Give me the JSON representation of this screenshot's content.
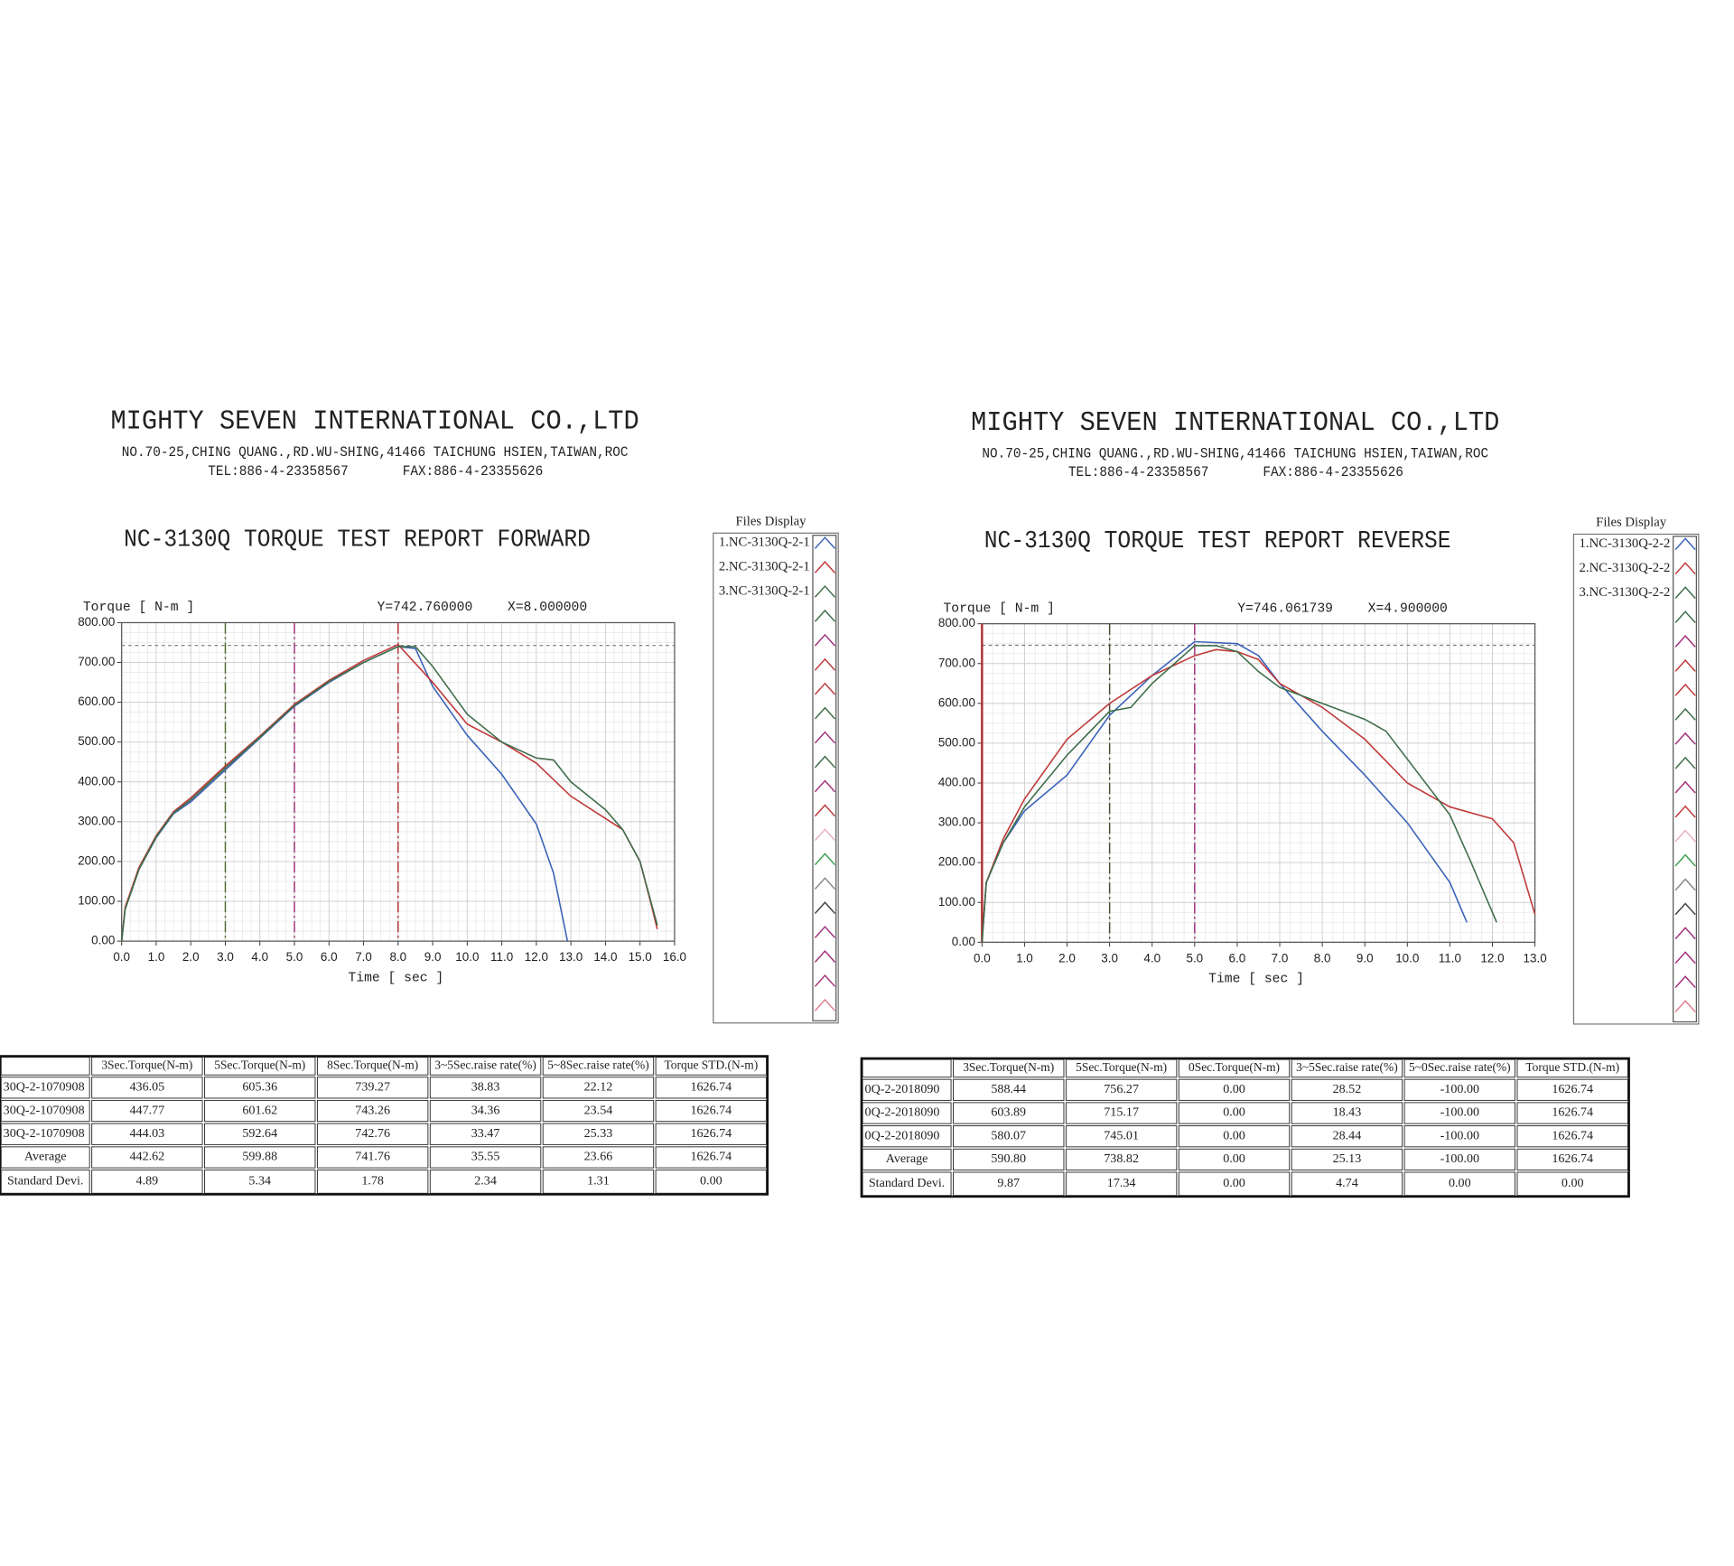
{
  "reports": [
    {
      "company": "MIGHTY SEVEN INTERNATIONAL CO.,LTD",
      "address": "NO.70-25,CHING QUANG.,RD.WU-SHING,41466 TAICHUNG HSIEN,TAIWAN,ROC",
      "tel": "TEL:886-4-23358567",
      "fax": "FAX:886-4-23355626",
      "files_title": "Files Display",
      "table": {
        "header": [
          "3Sec.Torque(N-m)",
          "5Sec.Torque(N-m)",
          "8Sec.Torque(N-m)",
          "3~5Sec.raise rate(%)",
          "5~8Sec.raise rate(%)",
          "Torque STD.(N-m)"
        ],
        "rows": [
          [
            "30Q-2-1070908",
            "436.05",
            "605.36",
            "739.27",
            "38.83",
            "22.12",
            "1626.74"
          ],
          [
            "30Q-2-1070908",
            "447.77",
            "601.62",
            "743.26",
            "34.36",
            "23.54",
            "1626.74"
          ],
          [
            "30Q-2-1070908",
            "444.03",
            "592.64",
            "742.76",
            "33.47",
            "25.33",
            "1626.74"
          ],
          [
            "Average",
            "442.62",
            "599.88",
            "741.76",
            "35.55",
            "23.66",
            "1626.74"
          ],
          [
            "Standard Devi.",
            "4.89",
            "5.34",
            "1.78",
            "2.34",
            "1.31",
            "0.00"
          ]
        ]
      }
    },
    {
      "company": "MIGHTY SEVEN INTERNATIONAL CO.,LTD",
      "address": "NO.70-25,CHING QUANG.,RD.WU-SHING,41466 TAICHUNG HSIEN,TAIWAN,ROC",
      "tel": "TEL:886-4-23358567",
      "fax": "FAX:886-4-23355626",
      "files_title": "Files Display",
      "table": {
        "header": [
          "3Sec.Torque(N-m)",
          "5Sec.Torque(N-m)",
          "0Sec.Torque(N-m)",
          "3~5Sec.raise rate(%)",
          "5~0Sec.raise rate(%)",
          "Torque STD.(N-m)"
        ],
        "rows": [
          [
            "0Q-2-2018090",
            "588.44",
            "756.27",
            "0.00",
            "28.52",
            "-100.00",
            "1626.74"
          ],
          [
            "0Q-2-2018090",
            "603.89",
            "715.17",
            "0.00",
            "18.43",
            "-100.00",
            "1626.74"
          ],
          [
            "0Q-2-2018090",
            "580.07",
            "745.01",
            "0.00",
            "28.44",
            "-100.00",
            "1626.74"
          ],
          [
            "Average",
            "590.80",
            "738.82",
            "0.00",
            "25.13",
            "-100.00",
            "1626.74"
          ],
          [
            "Standard Devi.",
            "9.87",
            "17.34",
            "0.00",
            "4.74",
            "0.00",
            "0.00"
          ]
        ]
      }
    }
  ],
  "chart_data": [
    {
      "type": "line",
      "title": "NC-3130Q TORQUE TEST REPORT FORWARD",
      "y_label": "Torque [ N-m  ]",
      "x_label": "Time [ sec ]",
      "annotations": [
        "Y=742.760000",
        "X=8.000000"
      ],
      "xlim": [
        0,
        16
      ],
      "ylim": [
        0,
        800
      ],
      "grid": true,
      "grid_subdivisions": 4,
      "xticks": [
        {
          "value": 0,
          "label": "0.0"
        },
        {
          "value": 1,
          "label": "1.0"
        },
        {
          "value": 2,
          "label": "2.0"
        },
        {
          "value": 3,
          "label": "3.0"
        },
        {
          "value": 4,
          "label": "4.0"
        },
        {
          "value": 5,
          "label": "5.0"
        },
        {
          "value": 6,
          "label": "6.0"
        },
        {
          "value": 7,
          "label": "7.0"
        },
        {
          "value": 8,
          "label": "8.0"
        },
        {
          "value": 9,
          "label": "9.0"
        },
        {
          "value": 10,
          "label": "10.0"
        },
        {
          "value": 11,
          "label": "11.0"
        },
        {
          "value": 12,
          "label": "12.0"
        },
        {
          "value": 13,
          "label": "13.0"
        },
        {
          "value": 14,
          "label": "14.0"
        },
        {
          "value": 15,
          "label": "15.0"
        },
        {
          "value": 16,
          "label": "16.0"
        }
      ],
      "yticks": [
        {
          "value": 0,
          "label": "0.00"
        },
        {
          "value": 100,
          "label": "100.00"
        },
        {
          "value": 200,
          "label": "200.00"
        },
        {
          "value": 300,
          "label": "300.00"
        },
        {
          "value": 400,
          "label": "400.00"
        },
        {
          "value": 500,
          "label": "500.00"
        },
        {
          "value": 600,
          "label": "600.00"
        },
        {
          "value": 700,
          "label": "700.00"
        },
        {
          "value": 800,
          "label": "800.00"
        }
      ],
      "vlines": [
        {
          "x": 3,
          "color": "#4f6a2f",
          "style": "dashed"
        },
        {
          "x": 5,
          "color": "#a0307a",
          "style": "dashed"
        },
        {
          "x": 8,
          "color": "#b03030",
          "style": "dashed"
        }
      ],
      "hline": 742.76,
      "series": [
        {
          "name": "1.NC-3130Q-2-1",
          "color": "#3a63b8",
          "x": [
            0,
            0.1,
            0.5,
            1,
            1.5,
            2,
            3,
            4,
            5,
            6,
            7,
            8,
            8.5,
            9,
            10,
            11,
            12,
            12.5,
            12.9
          ],
          "values": [
            0,
            80,
            180,
            260,
            320,
            350,
            430,
            510,
            590,
            650,
            700,
            740,
            735,
            640,
            517,
            419,
            294,
            170,
            0
          ]
        },
        {
          "name": "2.NC-3130Q-2-1",
          "color": "#c03a3a",
          "x": [
            0,
            0.1,
            0.5,
            1,
            1.5,
            2,
            3,
            4,
            5,
            6,
            7,
            8,
            9,
            10,
            11,
            12,
            13,
            14,
            14.5,
            15,
            15.3,
            15.5
          ],
          "values": [
            0,
            85,
            185,
            265,
            325,
            360,
            440,
            515,
            595,
            655,
            705,
            745,
            650,
            545,
            500,
            447,
            364,
            308,
            280,
            200,
            100,
            30
          ]
        },
        {
          "name": "3.NC-3130Q-2-1",
          "color": "#3f6e4a",
          "x": [
            0,
            0.1,
            0.5,
            1,
            1.5,
            2,
            3,
            4,
            5,
            6,
            7,
            8,
            8.5,
            9,
            10,
            11,
            12,
            12.5,
            13,
            14,
            14.5,
            15,
            15.5
          ],
          "values": [
            0,
            80,
            180,
            262,
            322,
            355,
            435,
            512,
            592,
            652,
            700,
            740,
            740,
            690,
            570,
            500,
            460,
            455,
            400,
            330,
            280,
            200,
            40
          ]
        }
      ]
    },
    {
      "type": "line",
      "title": "NC-3130Q TORQUE TEST REPORT REVERSE",
      "y_label": "Torque [ N-m  ]",
      "x_label": "Time [ sec ]",
      "annotations": [
        "Y=746.061739",
        "X=4.900000"
      ],
      "xlim": [
        0,
        13
      ],
      "ylim": [
        0,
        800
      ],
      "grid": true,
      "grid_subdivisions": 4,
      "xticks": [
        {
          "value": 0,
          "label": "0.0"
        },
        {
          "value": 1,
          "label": "1.0"
        },
        {
          "value": 2,
          "label": "2.0"
        },
        {
          "value": 3,
          "label": "3.0"
        },
        {
          "value": 4,
          "label": "4.0"
        },
        {
          "value": 5,
          "label": "5.0"
        },
        {
          "value": 6,
          "label": "6.0"
        },
        {
          "value": 7,
          "label": "7.0"
        },
        {
          "value": 8,
          "label": "8.0"
        },
        {
          "value": 9,
          "label": "9.0"
        },
        {
          "value": 10,
          "label": "10.0"
        },
        {
          "value": 11,
          "label": "11.0"
        },
        {
          "value": 12,
          "label": "12.0"
        },
        {
          "value": 13,
          "label": "13.0"
        }
      ],
      "yticks": [
        {
          "value": 0,
          "label": "0.00"
        },
        {
          "value": 100,
          "label": "100.00"
        },
        {
          "value": 200,
          "label": "200.00"
        },
        {
          "value": 300,
          "label": "300.00"
        },
        {
          "value": 400,
          "label": "400.00"
        },
        {
          "value": 500,
          "label": "500.00"
        },
        {
          "value": 600,
          "label": "600.00"
        },
        {
          "value": 700,
          "label": "700.00"
        },
        {
          "value": 800,
          "label": "800.00"
        }
      ],
      "vlines": [
        {
          "x": 0,
          "color": "#b03030",
          "style": "solid"
        },
        {
          "x": 3,
          "color": "#4f4a2f",
          "style": "dashed"
        },
        {
          "x": 5,
          "color": "#a0307a",
          "style": "dashed"
        }
      ],
      "hline": 746.06,
      "series": [
        {
          "name": "1.NC-3130Q-2-2",
          "color": "#3a63b8",
          "x": [
            0,
            0.1,
            0.5,
            1,
            2,
            3,
            4,
            5,
            6,
            6.5,
            7,
            8,
            9,
            10,
            11,
            11.4
          ],
          "values": [
            0,
            150,
            250,
            330,
            420,
            570,
            670,
            755,
            750,
            720,
            650,
            530,
            420,
            300,
            150,
            50
          ]
        },
        {
          "name": "2.NC-3130Q-2-2",
          "color": "#c03a3a",
          "x": [
            0,
            0.1,
            0.5,
            1,
            2,
            3,
            4,
            5,
            5.5,
            6,
            6.5,
            7,
            8,
            9,
            10,
            11,
            12,
            12.5,
            13
          ],
          "values": [
            0,
            150,
            260,
            360,
            510,
            600,
            670,
            720,
            735,
            730,
            710,
            650,
            590,
            510,
            400,
            340,
            310,
            250,
            70
          ]
        },
        {
          "name": "3.NC-3130Q-2-2",
          "color": "#3f6e4a",
          "x": [
            0,
            0.1,
            0.5,
            1,
            2,
            3,
            3.5,
            4,
            5,
            5.5,
            6,
            6.5,
            7,
            8,
            9,
            9.5,
            10,
            11,
            11.5,
            12.1
          ],
          "values": [
            0,
            150,
            250,
            340,
            470,
            580,
            590,
            650,
            745,
            745,
            730,
            680,
            640,
            600,
            560,
            530,
            460,
            320,
            200,
            50
          ]
        }
      ]
    }
  ]
}
